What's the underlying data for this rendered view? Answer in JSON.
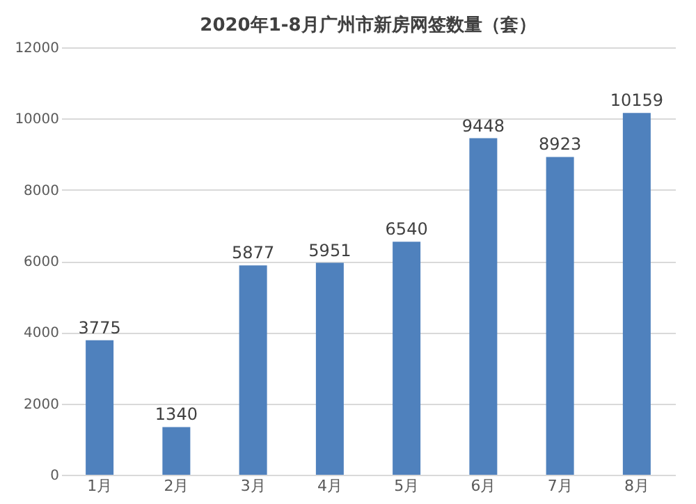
{
  "chart_data": {
    "type": "bar",
    "title": "2020年1-8月广州市新房网签数量（套）",
    "categories": [
      "1月",
      "2月",
      "3月",
      "4月",
      "5月",
      "6月",
      "7月",
      "8月"
    ],
    "values": [
      3775,
      1340,
      5877,
      5951,
      6540,
      9448,
      8923,
      10159
    ],
    "color": "#4f81bd",
    "ylim": [
      0,
      12000
    ],
    "yticks": [
      0,
      2000,
      4000,
      6000,
      8000,
      10000,
      12000
    ],
    "grid": "y",
    "data_labels": true
  }
}
